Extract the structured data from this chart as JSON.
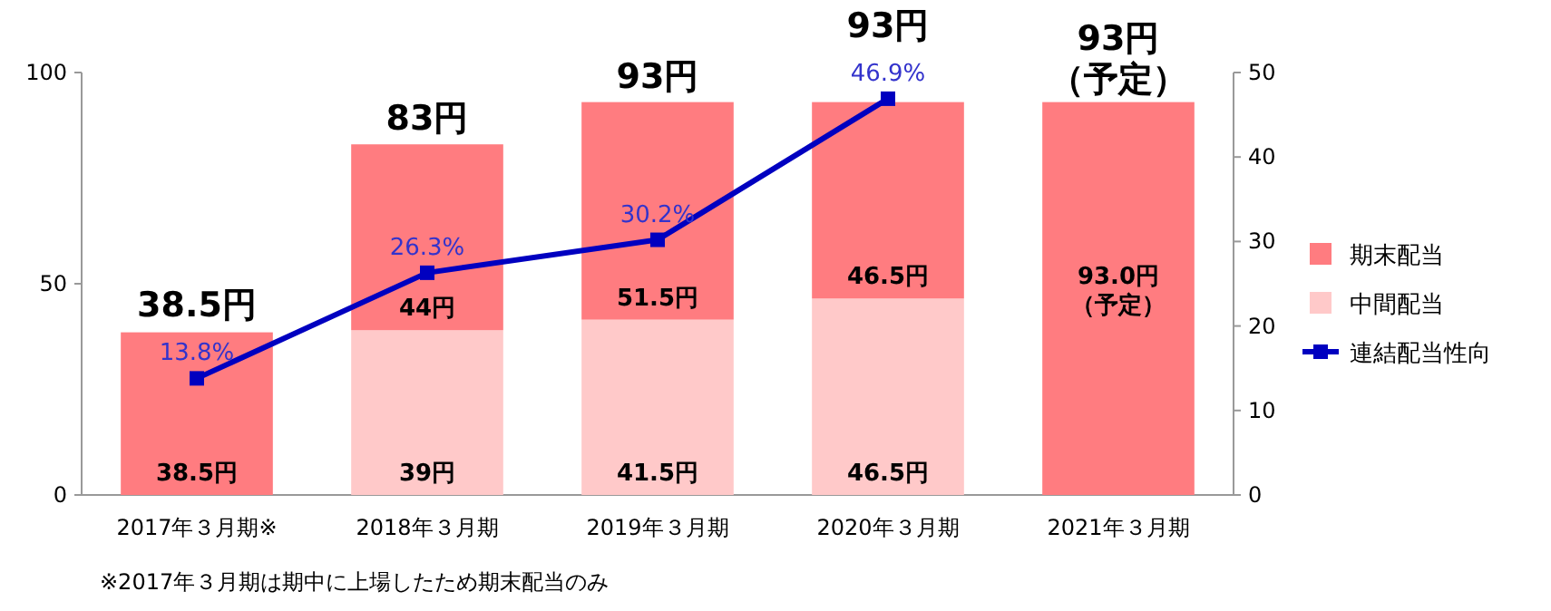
{
  "chart_data": {
    "type": "bar",
    "stacked": true,
    "categories": [
      "2017年３月期※",
      "2018年３月期",
      "2019年３月期",
      "2020年３月期",
      "2021年３月期"
    ],
    "series": [
      {
        "name": "中間配当",
        "color": "#ffc9c9",
        "values": [
          null,
          39,
          41.5,
          46.5,
          null
        ],
        "value_labels": [
          null,
          "39円",
          "41.5円",
          "46.5円",
          null
        ]
      },
      {
        "name": "期末配当",
        "color": "#ff7c80",
        "values": [
          38.5,
          44,
          51.5,
          46.5,
          93.0
        ],
        "value_labels": [
          "38.5円",
          "44円",
          "51.5円",
          "46.5円",
          "93.0円（予定）"
        ]
      },
      {
        "name": "連結配当性向",
        "type": "line",
        "axis": "y2",
        "color": "#0000c0",
        "marker": "square",
        "values": [
          13.8,
          26.3,
          30.2,
          46.9,
          null
        ],
        "value_labels": [
          "13.8%",
          "26.3%",
          "30.2%",
          "46.9%",
          null
        ]
      }
    ],
    "totals": [
      "38.5円",
      "83円",
      "93円",
      "93円",
      "93円（予定）"
    ],
    "ylim": [
      0,
      100
    ],
    "yticks": [
      0,
      50,
      100
    ],
    "y2lim": [
      0,
      50
    ],
    "y2ticks": [
      0,
      10,
      20,
      30,
      40,
      50
    ],
    "legend": "right",
    "annotations": [
      "※2017年３月期は期中に上場したため期末配当のみ"
    ]
  }
}
